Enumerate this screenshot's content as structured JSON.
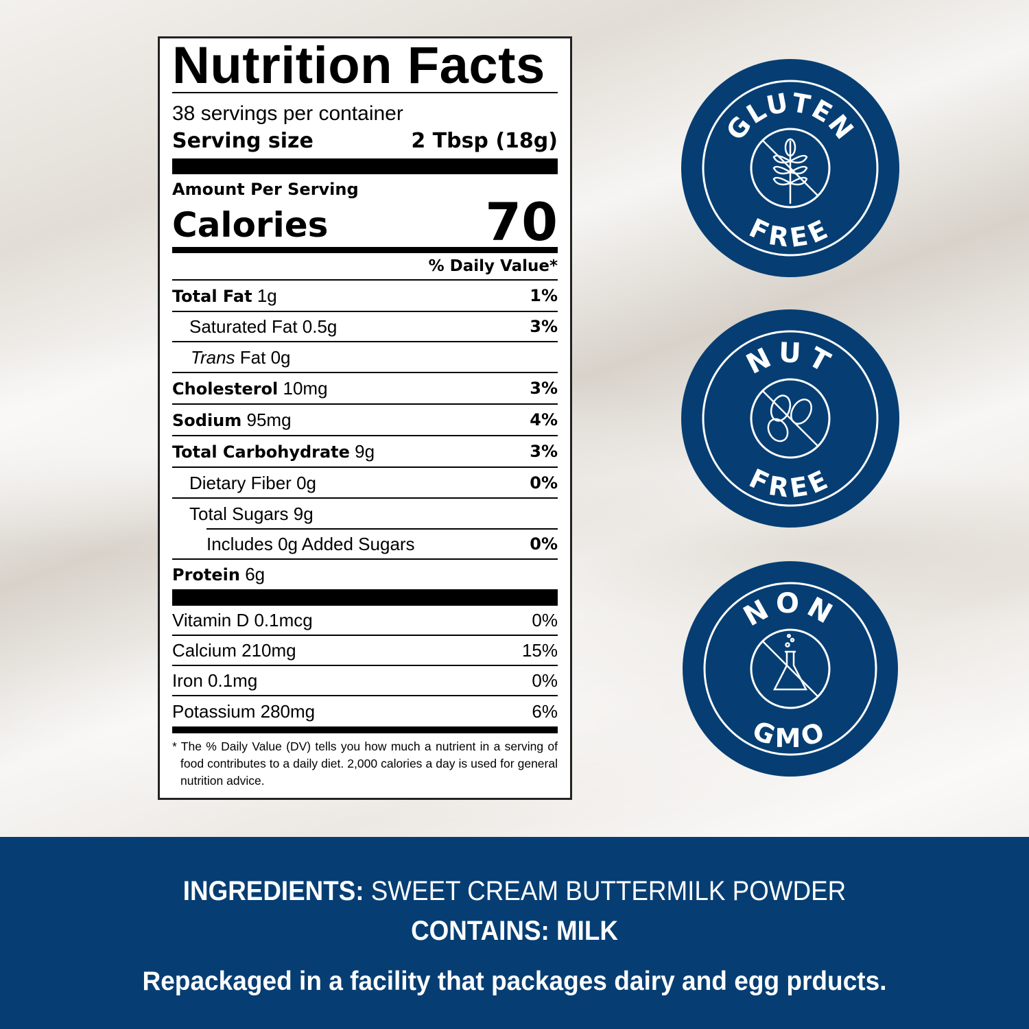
{
  "label": {
    "title": "Nutrition Facts",
    "servings": "38 servings per container",
    "serving_size_label": "Serving size",
    "serving_size_value": "2 Tbsp (18g)",
    "amount_per_serving": "Amount Per Serving",
    "calories_label": "Calories",
    "calories_value": "70",
    "dv_header": "% Daily Value*",
    "nutrients": [
      {
        "name": "Total Fat",
        "amount": "1g",
        "dv": "1%"
      },
      {
        "name": "Saturated Fat",
        "amount": "0.5g",
        "dv": "3%"
      },
      {
        "name_italic": "Trans",
        "name": "Fat",
        "amount": "0g",
        "dv": ""
      },
      {
        "name": "Cholesterol",
        "amount": "10mg",
        "dv": "3%"
      },
      {
        "name": "Sodium",
        "amount": "95mg",
        "dv": "4%"
      },
      {
        "name": "Total Carbohydrate",
        "amount": "9g",
        "dv": "3%"
      },
      {
        "name": "Dietary Fiber",
        "amount": "0g",
        "dv": "0%"
      },
      {
        "name": "Total Sugars",
        "amount": "9g",
        "dv": ""
      },
      {
        "name": "Includes 0g Added Sugars",
        "amount": "",
        "dv": "0%"
      },
      {
        "name": "Protein",
        "amount": "6g",
        "dv": ""
      }
    ],
    "vitamins": [
      {
        "name": "Vitamin D 0.1mcg",
        "dv": "0%"
      },
      {
        "name": "Calcium 210mg",
        "dv": "15%"
      },
      {
        "name": "Iron 0.1mg",
        "dv": "0%"
      },
      {
        "name": "Potassium 280mg",
        "dv": "6%"
      }
    ],
    "footnote": "* The % Daily Value (DV) tells you how much a nutrient in a serving of food contributes to a daily diet. 2,000 calories a day is used for general nutrition advice."
  },
  "badges": [
    {
      "top": "GLUTEN",
      "bottom": "FREE",
      "icon": "wheat-crossed-icon"
    },
    {
      "top": "NUT",
      "bottom": "FREE",
      "icon": "peanut-crossed-icon"
    },
    {
      "top": "NON",
      "bottom": "GMO",
      "icon": "flask-crossed-icon"
    }
  ],
  "footer": {
    "ingredients_label": "INGREDIENTS:",
    "ingredients_value": " SWEET CREAM BUTTERMILK POWDER",
    "contains_label": "CONTAINS:",
    "contains_value": " MILK",
    "facility_note": "Repackaged in a facility that packages dairy and egg prducts."
  },
  "colors": {
    "brand_blue": "#063e73",
    "background": "#ece8e3"
  }
}
